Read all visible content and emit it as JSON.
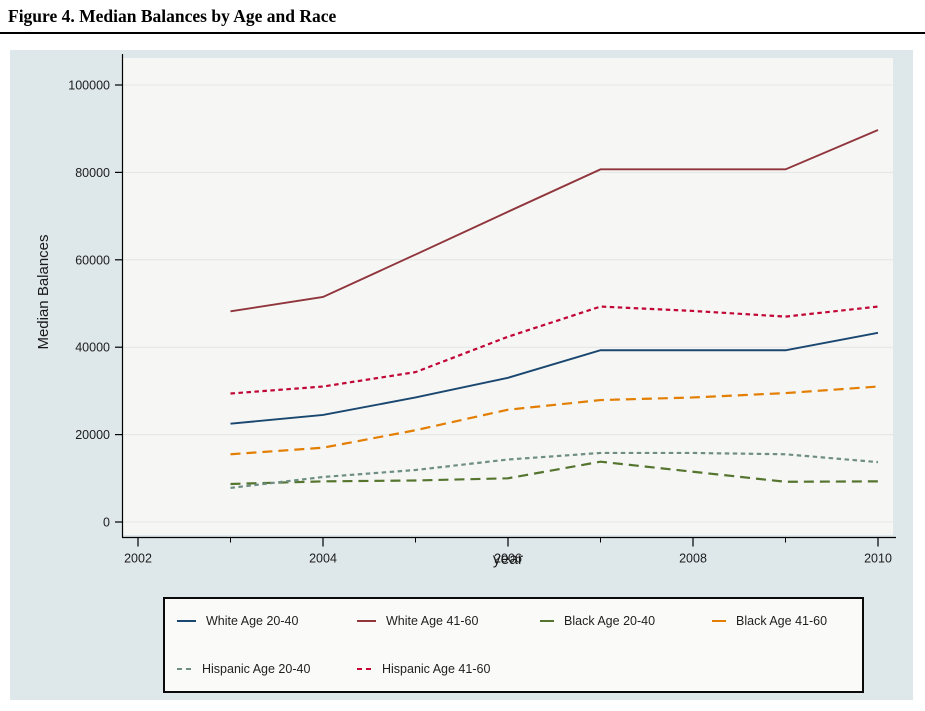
{
  "page": {
    "title": "Figure 4. Median Balances by Age and Race"
  },
  "chart_data": {
    "type": "line",
    "xlabel": "year",
    "ylabel": "Median Balances",
    "x": [
      2003,
      2004,
      2005,
      2006,
      2007,
      2008,
      2009,
      2010
    ],
    "series": [
      {
        "name": "White Age 20-40",
        "color": "#1a476f",
        "dash": "solid",
        "values": [
          22500,
          24500,
          28500,
          33000,
          39300,
          39300,
          39300,
          43300
        ]
      },
      {
        "name": "White Age 41-60",
        "color": "#90353b",
        "dash": "solid",
        "values": [
          48200,
          51500,
          61200,
          71000,
          80700,
          80700,
          80700,
          89700
        ]
      },
      {
        "name": "Black Age 20-40",
        "color": "#55752f",
        "dash": "long",
        "values": [
          8700,
          9300,
          9500,
          10000,
          13800,
          11500,
          9200,
          9300
        ]
      },
      {
        "name": "Black Age 41-60",
        "color": "#e37e00",
        "dash": "long",
        "values": [
          15500,
          17000,
          21000,
          25700,
          27900,
          28500,
          29500,
          31000
        ]
      },
      {
        "name": "Hispanic Age 20-40",
        "color": "#6e8e84",
        "dash": "short",
        "values": [
          7800,
          10300,
          11900,
          14300,
          15800,
          15800,
          15500,
          13700
        ]
      },
      {
        "name": "Hispanic Age 41-60",
        "color": "#c10534",
        "dash": "short",
        "values": [
          29400,
          31000,
          34300,
          42400,
          49300,
          48300,
          47000,
          49300
        ]
      }
    ],
    "xlim": [
      2002,
      2010.2
    ],
    "ylim": [
      0,
      100000
    ],
    "x_major_ticks": [
      2002,
      2004,
      2006,
      2008,
      2010
    ],
    "x_minor_ticks": [
      2003,
      2005,
      2007,
      2009
    ],
    "y_ticks": [
      0,
      20000,
      40000,
      60000,
      80000,
      100000
    ],
    "grid": "horizontal",
    "legend_position": "bottom",
    "colors": {
      "panel_background": "#dee7ea",
      "plot_background": "#f6f6f5",
      "gridline": "#e4e6e5",
      "axis": "#000000"
    }
  }
}
